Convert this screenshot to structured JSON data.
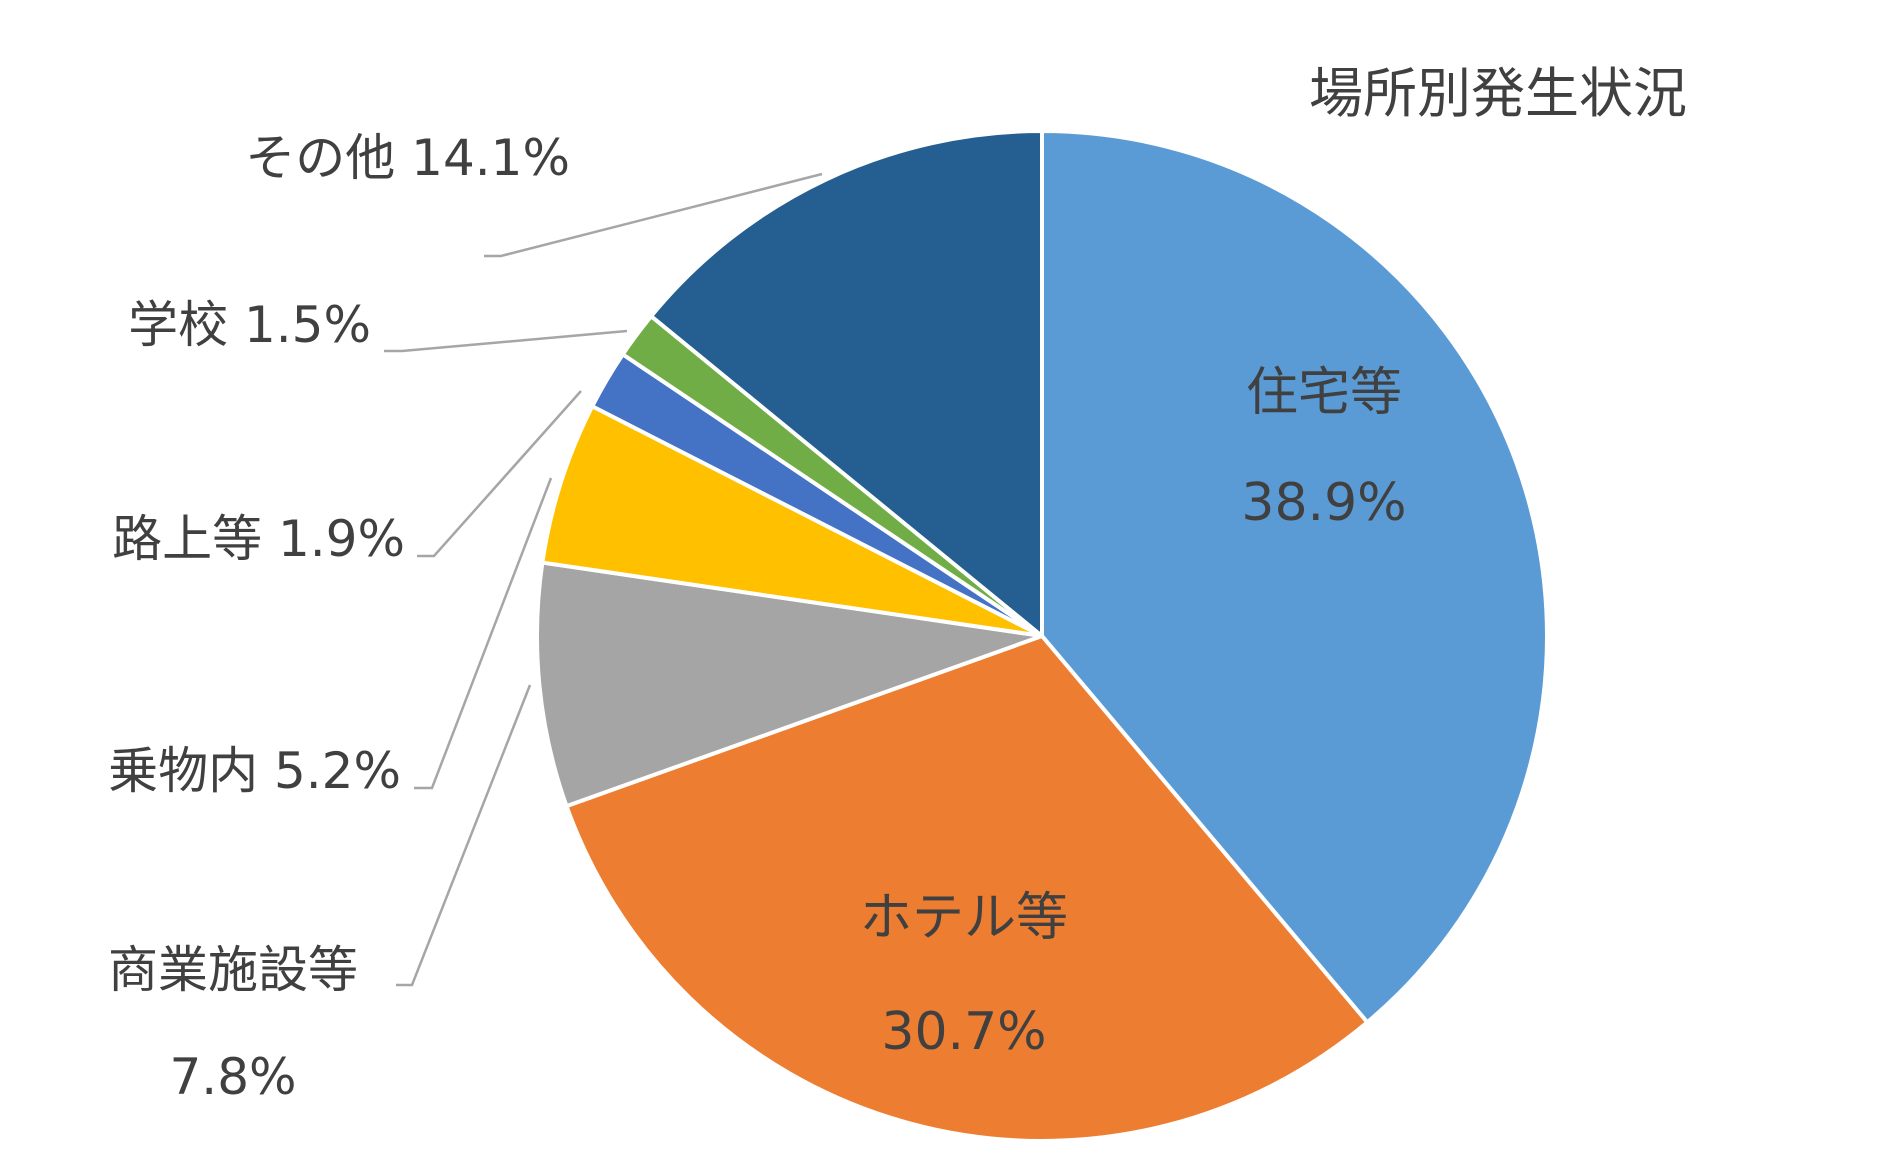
{
  "chart_data": {
    "type": "pie",
    "title": "場所別発生状況",
    "start_angle_deg": 0,
    "direction": "clockwise",
    "slices": [
      {
        "label": "住宅等",
        "value": 38.9,
        "display": "38.9%",
        "color": "#5b9bd5"
      },
      {
        "label": "ホテル等",
        "value": 30.7,
        "display": "30.7%",
        "color": "#ed7d31"
      },
      {
        "label": "商業施設等",
        "value": 7.8,
        "display": "7.8%",
        "color": "#a5a5a5"
      },
      {
        "label": "乗物内",
        "value": 5.2,
        "display": "5.2%",
        "color": "#ffc000"
      },
      {
        "label": "路上等",
        "value": 1.9,
        "display": "1.9%",
        "color": "#4472c4"
      },
      {
        "label": "学校",
        "value": 1.5,
        "display": "1.5%",
        "color": "#70ad47"
      },
      {
        "label": "その他",
        "value": 14.1,
        "display": "14.1%",
        "color": "#255e91"
      }
    ]
  }
}
